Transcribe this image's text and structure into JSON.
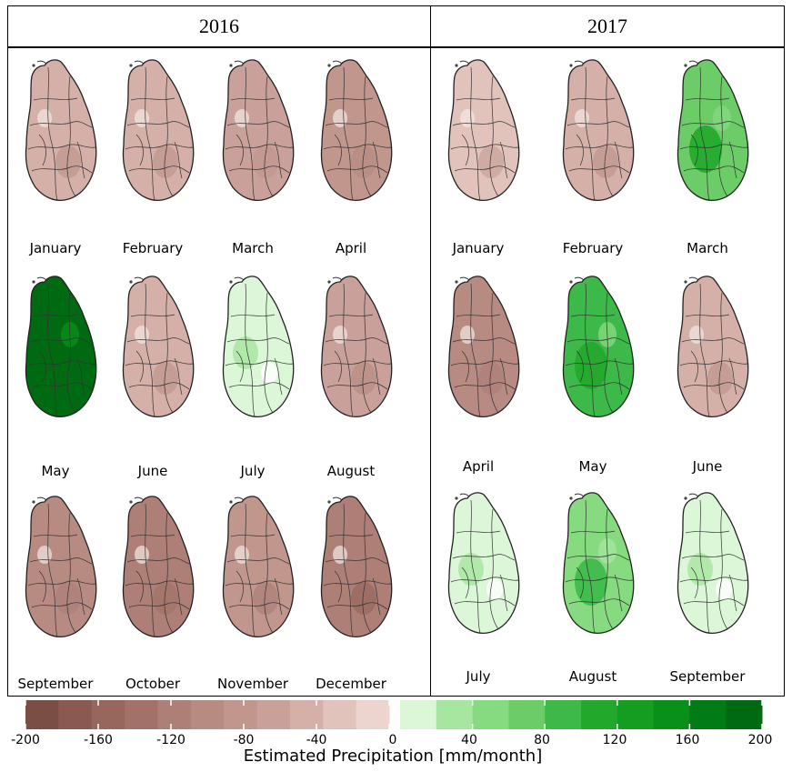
{
  "panels": [
    {
      "year": "2016",
      "months": [
        {
          "label": "January",
          "anomaly": -40
        },
        {
          "label": "February",
          "anomaly": -40
        },
        {
          "label": "March",
          "anomaly": -50
        },
        {
          "label": "April",
          "anomaly": -70
        },
        {
          "label": "May",
          "anomaly": 180
        },
        {
          "label": "June",
          "anomaly": -40
        },
        {
          "label": "July",
          "anomaly": 10
        },
        {
          "label": "August",
          "anomaly": -60
        },
        {
          "label": "September",
          "anomaly": -90
        },
        {
          "label": "October",
          "anomaly": -110
        },
        {
          "label": "November",
          "anomaly": -80
        },
        {
          "label": "December",
          "anomaly": -120
        }
      ]
    },
    {
      "year": "2017",
      "months": [
        {
          "label": "January",
          "anomaly": -20
        },
        {
          "label": "February",
          "anomaly": -40
        },
        {
          "label": "March",
          "anomaly": 70
        },
        {
          "label": "April",
          "anomaly": -90
        },
        {
          "label": "May",
          "anomaly": 80
        },
        {
          "label": "June",
          "anomaly": -40
        },
        {
          "label": "July",
          "anomaly": 0
        },
        {
          "label": "August",
          "anomaly": 50
        },
        {
          "label": "September",
          "anomaly": 5
        }
      ]
    }
  ],
  "legend": {
    "title": "Estimated Precipitation [mm/month]",
    "ticks": [
      "-200",
      "-160",
      "-120",
      "-80",
      "-40",
      "0",
      "40",
      "80",
      "120",
      "160",
      "200"
    ],
    "neg_colors": [
      "#7a4e45",
      "#8a5a52",
      "#97675e",
      "#a2726a",
      "#ad7f77",
      "#b78b82",
      "#c0968d",
      "#c9a19a",
      "#d4b0a8",
      "#e1c3bc",
      "#ecd5cf"
    ],
    "pos_colors": [
      "#dcf6d8",
      "#a6e6a0",
      "#86da80",
      "#6ccc68",
      "#3cb948",
      "#22a92c",
      "#149d20",
      "#08901a",
      "#007b16",
      "#006a12"
    ]
  }
}
